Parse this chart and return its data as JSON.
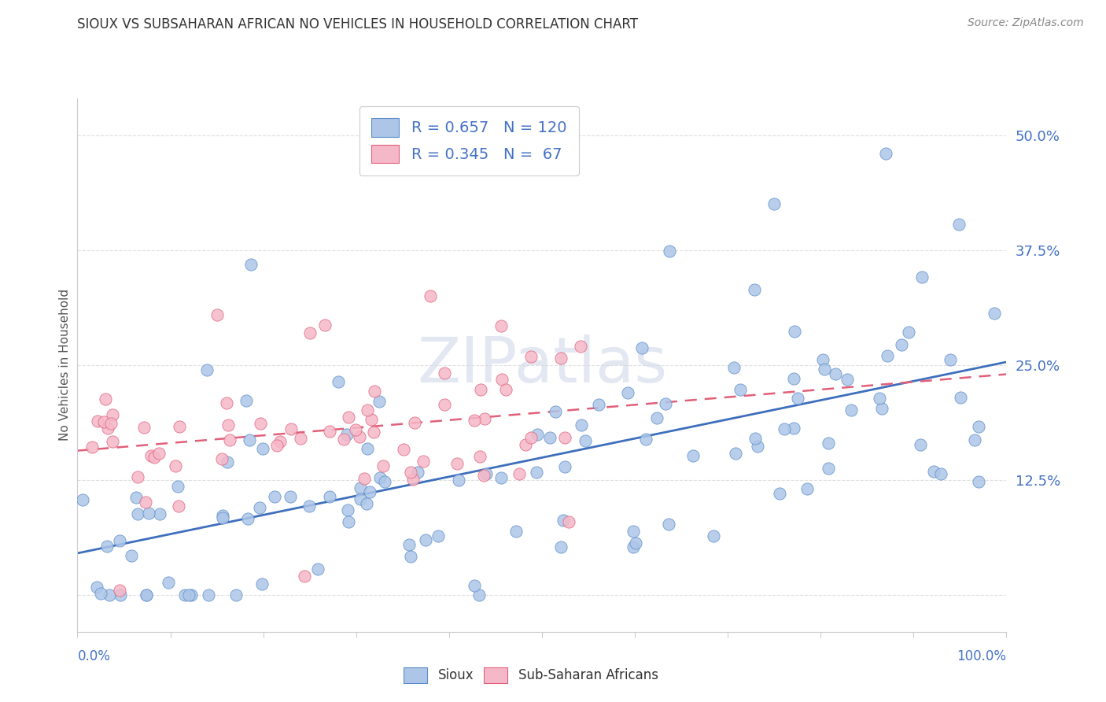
{
  "title": "SIOUX VS SUBSAHARAN AFRICAN NO VEHICLES IN HOUSEHOLD CORRELATION CHART",
  "source": "Source: ZipAtlas.com",
  "ylabel": "No Vehicles in Household",
  "ytick_vals": [
    0.0,
    0.125,
    0.25,
    0.375,
    0.5
  ],
  "ytick_labels": [
    "",
    "12.5%",
    "25.0%",
    "37.5%",
    "50.0%"
  ],
  "xlim": [
    0.0,
    1.0
  ],
  "ylim": [
    -0.04,
    0.54
  ],
  "sioux_color": "#adc6e8",
  "sioux_edge_color": "#5b8dc8",
  "sioux_line_color": "#3e6fbd",
  "subsaharan_color": "#f5b8c8",
  "subsaharan_edge_color": "#e0607a",
  "subsaharan_line_color": "#e0607a",
  "sioux_R": 0.657,
  "sioux_N": 120,
  "subsaharan_R": 0.345,
  "subsaharan_N": 67,
  "watermark": "ZIPatlas",
  "legend_label_sioux": "Sioux",
  "legend_label_subsaharan": "Sub-Saharan Africans",
  "title_color": "#333333",
  "source_color": "#888888",
  "axis_label_color": "#4472c4",
  "ylabel_color": "#555555",
  "grid_color": "#e0e0e0"
}
